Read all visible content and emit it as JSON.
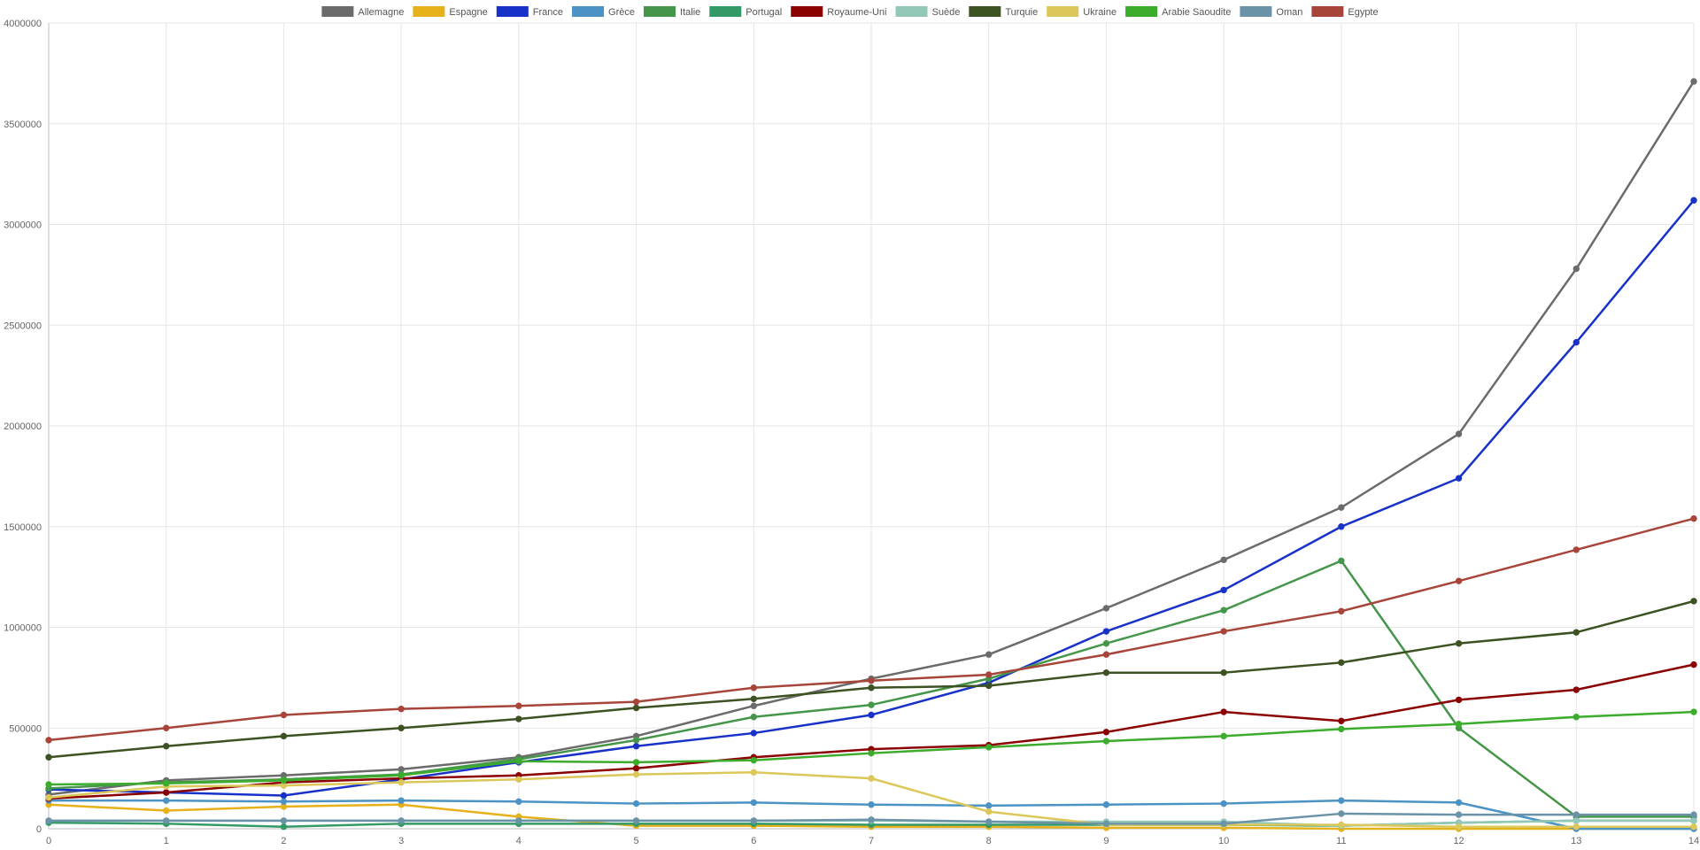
{
  "chart_data": {
    "type": "line",
    "title": "",
    "xlabel": "",
    "ylabel": "",
    "x": [
      0,
      1,
      2,
      3,
      4,
      5,
      6,
      7,
      8,
      9,
      10,
      11,
      12,
      13,
      14
    ],
    "ylim": [
      0,
      4000000
    ],
    "y_ticks": [
      "0",
      "500000",
      "1000000",
      "1500000",
      "2000000",
      "2500000",
      "3000000",
      "3500000",
      "4000000"
    ],
    "x_ticks": [
      "0",
      "1",
      "2",
      "3",
      "4",
      "5",
      "6",
      "7",
      "8",
      "9",
      "10",
      "11",
      "12",
      "13",
      "14"
    ],
    "grid": true,
    "legend_position": "top",
    "series": [
      {
        "name": "Allemagne",
        "color": "#6b6b6b",
        "values": [
          170000,
          240000,
          265000,
          295000,
          355000,
          460000,
          610000,
          745000,
          865000,
          1095000,
          1335000,
          1595000,
          1960000,
          2780000,
          3710000
        ]
      },
      {
        "name": "Espagne",
        "color": "#e6b11b",
        "values": [
          120000,
          90000,
          110000,
          120000,
          60000,
          15000,
          15000,
          10000,
          10000,
          5000,
          5000,
          0,
          0,
          0,
          0
        ]
      },
      {
        "name": "France",
        "color": "#1832c9",
        "values": [
          195000,
          180000,
          165000,
          245000,
          330000,
          410000,
          475000,
          565000,
          725000,
          980000,
          1185000,
          1500000,
          1740000,
          2415000,
          3120000
        ]
      },
      {
        "name": "Grèce",
        "color": "#4a93c4",
        "values": [
          140000,
          140000,
          135000,
          140000,
          135000,
          125000,
          130000,
          120000,
          115000,
          120000,
          125000,
          140000,
          130000,
          0,
          0
        ]
      },
      {
        "name": "Italie",
        "color": "#45964a",
        "values": [
          200000,
          230000,
          245000,
          270000,
          345000,
          440000,
          555000,
          615000,
          745000,
          920000,
          1085000,
          1330000,
          500000,
          60000,
          60000
        ]
      },
      {
        "name": "Portugal",
        "color": "#339966",
        "values": [
          30000,
          25000,
          10000,
          25000,
          25000,
          25000,
          25000,
          20000,
          20000,
          20000,
          20000,
          15000,
          30000,
          40000,
          40000
        ]
      },
      {
        "name": "Royaume-Uni",
        "color": "#8b0000",
        "values": [
          150000,
          180000,
          230000,
          250000,
          265000,
          300000,
          355000,
          395000,
          415000,
          480000,
          580000,
          535000,
          640000,
          690000,
          815000
        ]
      },
      {
        "name": "Suède",
        "color": "#93c8b8",
        "values": [
          40000,
          40000,
          40000,
          40000,
          40000,
          40000,
          40000,
          40000,
          35000,
          35000,
          35000,
          15000,
          30000,
          40000,
          40000
        ]
      },
      {
        "name": "Turquie",
        "color": "#3d5222",
        "values": [
          355000,
          410000,
          460000,
          500000,
          545000,
          600000,
          645000,
          700000,
          710000,
          775000,
          775000,
          825000,
          920000,
          975000,
          1130000
        ]
      },
      {
        "name": "Ukraine",
        "color": "#dcc75a",
        "values": [
          155000,
          210000,
          215000,
          230000,
          245000,
          270000,
          280000,
          250000,
          85000,
          20000,
          20000,
          20000,
          10000,
          10000,
          10000
        ]
      },
      {
        "name": "Arabie Saoudite",
        "color": "#3cac2d",
        "values": [
          220000,
          225000,
          240000,
          265000,
          335000,
          330000,
          340000,
          375000,
          405000,
          435000,
          460000,
          495000,
          520000,
          555000,
          580000
        ]
      },
      {
        "name": "Oman",
        "color": "#6b93a8",
        "values": [
          40000,
          40000,
          40000,
          40000,
          40000,
          40000,
          40000,
          45000,
          35000,
          25000,
          25000,
          75000,
          70000,
          70000,
          70000
        ]
      },
      {
        "name": "Egypte",
        "color": "#a8453a",
        "values": [
          440000,
          500000,
          565000,
          595000,
          610000,
          630000,
          700000,
          735000,
          765000,
          865000,
          980000,
          1080000,
          1230000,
          1385000,
          1540000
        ]
      }
    ]
  }
}
